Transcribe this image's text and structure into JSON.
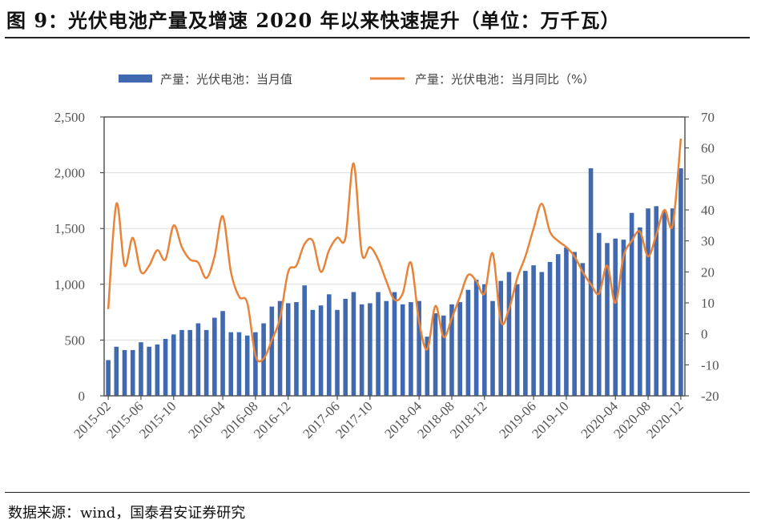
{
  "title": "图 9：光伏电池产量及增速 2020 年以来快速提升（单位：万千瓦）",
  "source": "数据来源：wind，国泰君安证券研究",
  "colors": {
    "bar": "#4169b0",
    "line": "#e8843a"
  },
  "chart_data": {
    "type": "bar+line",
    "legend": [
      "产量：光伏电池：当月值",
      "产量：光伏电池：当月同比（%）"
    ],
    "legend_position": "top",
    "ylim_left": [
      0,
      2500
    ],
    "yticks_left": [
      "0",
      "500",
      "1,000",
      "1,500",
      "2,000",
      "2,500"
    ],
    "ylim_right": [
      -20,
      70
    ],
    "yticks_right": [
      "-20",
      "-10",
      "0",
      "10",
      "20",
      "30",
      "40",
      "50",
      "60",
      "70"
    ],
    "start": "2015-02",
    "xtick_labels": [
      {
        "i": 0,
        "t": "2015-02"
      },
      {
        "i": 4,
        "t": "2015-06"
      },
      {
        "i": 8,
        "t": "2015-10"
      },
      {
        "i": 14,
        "t": "2016-04"
      },
      {
        "i": 18,
        "t": "2016-08"
      },
      {
        "i": 22,
        "t": "2016-12"
      },
      {
        "i": 28,
        "t": "2017-06"
      },
      {
        "i": 32,
        "t": "2017-10"
      },
      {
        "i": 38,
        "t": "2018-04"
      },
      {
        "i": 42,
        "t": "2018-08"
      },
      {
        "i": 46,
        "t": "2018-12"
      },
      {
        "i": 52,
        "t": "2019-06"
      },
      {
        "i": 56,
        "t": "2019-10"
      },
      {
        "i": 62,
        "t": "2020-04"
      },
      {
        "i": 66,
        "t": "2020-08"
      },
      {
        "i": 70,
        "t": "2020-12"
      }
    ],
    "series": [
      {
        "name": "产量：光伏电池：当月值",
        "axis": "left",
        "type": "bar",
        "values": [
          320,
          440,
          410,
          410,
          480,
          440,
          460,
          510,
          550,
          590,
          590,
          650,
          590,
          700,
          760,
          570,
          570,
          540,
          570,
          650,
          800,
          850,
          830,
          840,
          990,
          770,
          810,
          910,
          770,
          870,
          930,
          820,
          830,
          930,
          850,
          930,
          820,
          840,
          850,
          530,
          740,
          720,
          820,
          840,
          950,
          1040,
          1000,
          850,
          1030,
          1110,
          1000,
          1120,
          1170,
          1110,
          1200,
          1270,
          1330,
          1290,
          1190,
          2040,
          1460,
          1370,
          1410,
          1400,
          1640,
          1510,
          1680,
          1700,
          1660,
          1680,
          2040
        ]
      },
      {
        "name": "产量：光伏电池：当月同比（%）",
        "axis": "right",
        "type": "line",
        "values": [
          8,
          42,
          22,
          31,
          20,
          22,
          27,
          24,
          35,
          28,
          24,
          23,
          18,
          25,
          38,
          20,
          12,
          10,
          -7,
          -8,
          -2,
          5,
          20,
          22,
          29,
          30,
          20,
          27,
          31,
          31,
          55,
          26,
          28,
          24,
          17,
          11,
          13,
          23,
          4,
          -5,
          9,
          -1,
          5,
          12,
          19,
          17,
          13,
          26,
          4,
          8,
          18,
          25,
          34,
          42,
          33,
          30,
          28,
          25,
          20,
          16,
          13,
          22,
          10,
          25,
          30,
          33,
          25,
          32,
          40,
          35,
          63
        ]
      }
    ]
  }
}
